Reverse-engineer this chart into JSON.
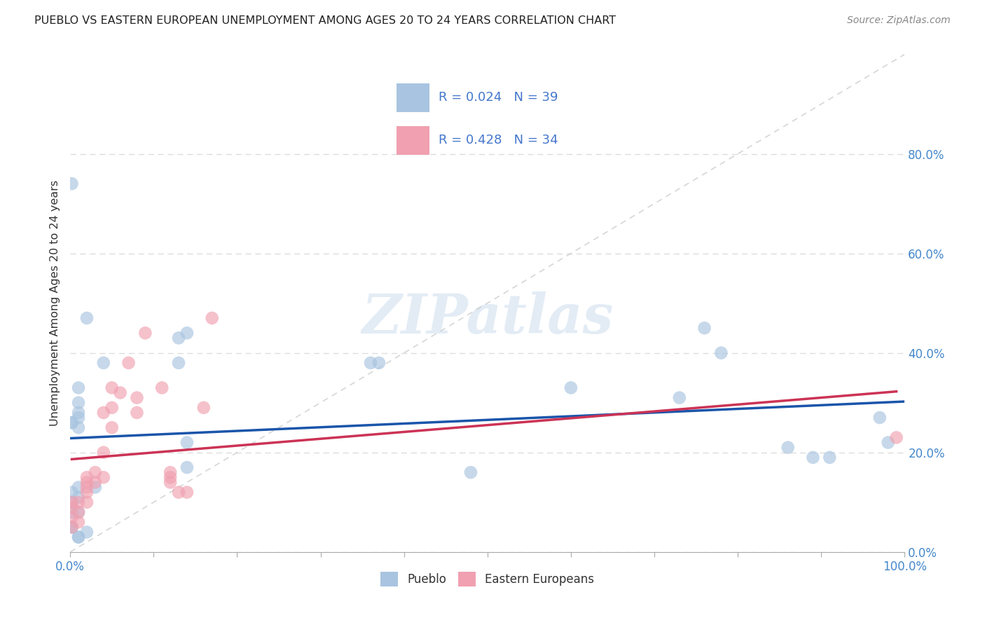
{
  "title": "PUEBLO VS EASTERN EUROPEAN UNEMPLOYMENT AMONG AGES 20 TO 24 YEARS CORRELATION CHART",
  "source": "Source: ZipAtlas.com",
  "ylabel": "Unemployment Among Ages 20 to 24 years",
  "xlim": [
    0,
    1.0
  ],
  "ylim": [
    0,
    1.0
  ],
  "yticks": [
    0.0,
    0.2,
    0.4,
    0.6,
    0.8
  ],
  "yticklabels": [
    "0.0%",
    "20.0%",
    "40.0%",
    "60.0%",
    "80.0%"
  ],
  "pueblo_color": "#a8c4e0",
  "eastern_color": "#f0a0b0",
  "pueblo_line_color": "#1a55aa",
  "eastern_line_color": "#cc3355",
  "pueblo_R": 0.024,
  "pueblo_N": 39,
  "eastern_R": 0.428,
  "eastern_N": 34,
  "legend_R_color": "#4477cc",
  "watermark": "ZIPatlas",
  "pueblo_x": [
    0.02,
    0.01,
    0.01,
    0.13,
    0.01,
    0.01,
    0.002,
    0.002,
    0.01,
    0.002,
    0.02,
    0.04,
    0.14,
    0.002,
    0.01,
    0.01,
    0.03,
    0.13,
    0.36,
    0.37,
    0.48,
    0.6,
    0.14,
    0.14,
    0.002,
    0.01,
    0.76,
    0.78,
    0.86,
    0.89,
    0.91,
    0.97,
    0.98,
    0.73,
    0.01,
    0.01,
    0.002,
    0.002,
    0.002
  ],
  "pueblo_y": [
    0.47,
    0.3,
    0.28,
    0.43,
    0.33,
    0.27,
    0.1,
    0.08,
    0.08,
    0.05,
    0.04,
    0.38,
    0.44,
    0.26,
    0.25,
    0.13,
    0.13,
    0.38,
    0.38,
    0.38,
    0.16,
    0.33,
    0.22,
    0.17,
    0.12,
    0.11,
    0.45,
    0.4,
    0.21,
    0.19,
    0.19,
    0.27,
    0.22,
    0.31,
    0.03,
    0.03,
    0.05,
    0.74,
    0.26
  ],
  "eastern_x": [
    0.002,
    0.002,
    0.002,
    0.002,
    0.01,
    0.01,
    0.01,
    0.02,
    0.02,
    0.02,
    0.02,
    0.02,
    0.03,
    0.03,
    0.04,
    0.04,
    0.04,
    0.05,
    0.05,
    0.05,
    0.06,
    0.07,
    0.08,
    0.08,
    0.09,
    0.11,
    0.12,
    0.12,
    0.12,
    0.13,
    0.14,
    0.16,
    0.17,
    0.99
  ],
  "eastern_y": [
    0.05,
    0.07,
    0.09,
    0.1,
    0.06,
    0.08,
    0.1,
    0.1,
    0.12,
    0.13,
    0.14,
    0.15,
    0.14,
    0.16,
    0.15,
    0.2,
    0.28,
    0.25,
    0.29,
    0.33,
    0.32,
    0.38,
    0.28,
    0.31,
    0.44,
    0.33,
    0.14,
    0.15,
    0.16,
    0.12,
    0.12,
    0.29,
    0.47,
    0.23
  ]
}
